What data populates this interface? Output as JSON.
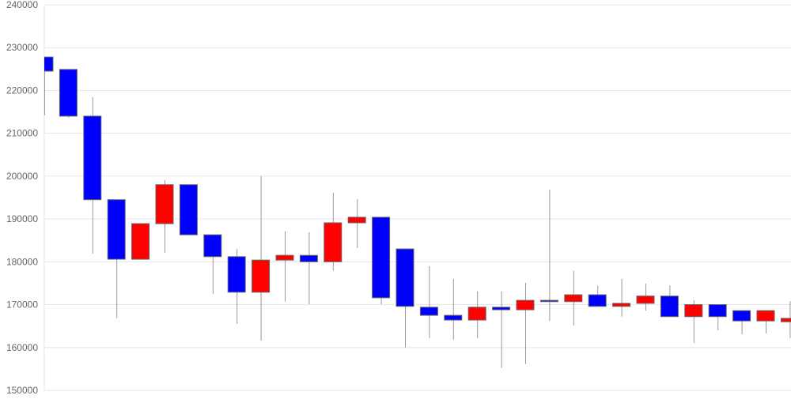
{
  "chart_data": {
    "type": "candlestick",
    "title": "",
    "xlabel": "",
    "ylabel": "",
    "ylim": [
      150000,
      240000
    ],
    "yticks": [
      "150000",
      "160000",
      "170000",
      "180000",
      "190000",
      "200000",
      "210000",
      "220000",
      "230000",
      "240000"
    ],
    "grid": true,
    "colors": {
      "up": "#ff0000",
      "down": "#0000ff",
      "wick": "#999999",
      "grid": "#e6e6e6"
    },
    "candles": [
      {
        "o": 227800,
        "h": 227800,
        "l": 214200,
        "c": 224500
      },
      {
        "o": 224900,
        "h": 224900,
        "l": 213600,
        "c": 214000
      },
      {
        "o": 214000,
        "h": 218400,
        "l": 181900,
        "c": 194500
      },
      {
        "o": 194500,
        "h": 194500,
        "l": 166800,
        "c": 180600
      },
      {
        "o": 180600,
        "h": 188900,
        "l": 180600,
        "c": 188900
      },
      {
        "o": 188900,
        "h": 199100,
        "l": 182100,
        "c": 198000
      },
      {
        "o": 198000,
        "h": 198000,
        "l": 186300,
        "c": 186300
      },
      {
        "o": 186300,
        "h": 186300,
        "l": 172500,
        "c": 181200
      },
      {
        "o": 181200,
        "h": 183000,
        "l": 165500,
        "c": 172900
      },
      {
        "o": 172900,
        "h": 200000,
        "l": 161600,
        "c": 180400
      },
      {
        "o": 180400,
        "h": 187100,
        "l": 170700,
        "c": 181500
      },
      {
        "o": 181500,
        "h": 186900,
        "l": 170100,
        "c": 180000
      },
      {
        "o": 180000,
        "h": 196100,
        "l": 177900,
        "c": 189100
      },
      {
        "o": 189100,
        "h": 194600,
        "l": 183200,
        "c": 190400
      },
      {
        "o": 190400,
        "h": 190400,
        "l": 170100,
        "c": 171600
      },
      {
        "o": 183000,
        "h": 183000,
        "l": 160000,
        "c": 169600
      },
      {
        "o": 169400,
        "h": 179000,
        "l": 162200,
        "c": 167500
      },
      {
        "o": 167500,
        "h": 176000,
        "l": 161800,
        "c": 166400
      },
      {
        "o": 166400,
        "h": 173100,
        "l": 162200,
        "c": 169400
      },
      {
        "o": 169400,
        "h": 173100,
        "l": 155200,
        "c": 168800
      },
      {
        "o": 168800,
        "h": 175100,
        "l": 156100,
        "c": 171000
      },
      {
        "o": 171000,
        "h": 196900,
        "l": 166200,
        "c": 170700
      },
      {
        "o": 170700,
        "h": 177900,
        "l": 165100,
        "c": 172300
      },
      {
        "o": 172300,
        "h": 174400,
        "l": 169600,
        "c": 169600
      },
      {
        "o": 169600,
        "h": 176000,
        "l": 167200,
        "c": 170300
      },
      {
        "o": 170300,
        "h": 174900,
        "l": 168600,
        "c": 172000
      },
      {
        "o": 172000,
        "h": 174500,
        "l": 167200,
        "c": 167200
      },
      {
        "o": 167200,
        "h": 171000,
        "l": 161100,
        "c": 170000
      },
      {
        "o": 170000,
        "h": 170000,
        "l": 164000,
        "c": 167200
      },
      {
        "o": 168600,
        "h": 168600,
        "l": 163100,
        "c": 166200
      },
      {
        "o": 166200,
        "h": 168600,
        "l": 163300,
        "c": 168600
      },
      {
        "o": 166000,
        "h": 170800,
        "l": 162200,
        "c": 166800
      }
    ]
  }
}
